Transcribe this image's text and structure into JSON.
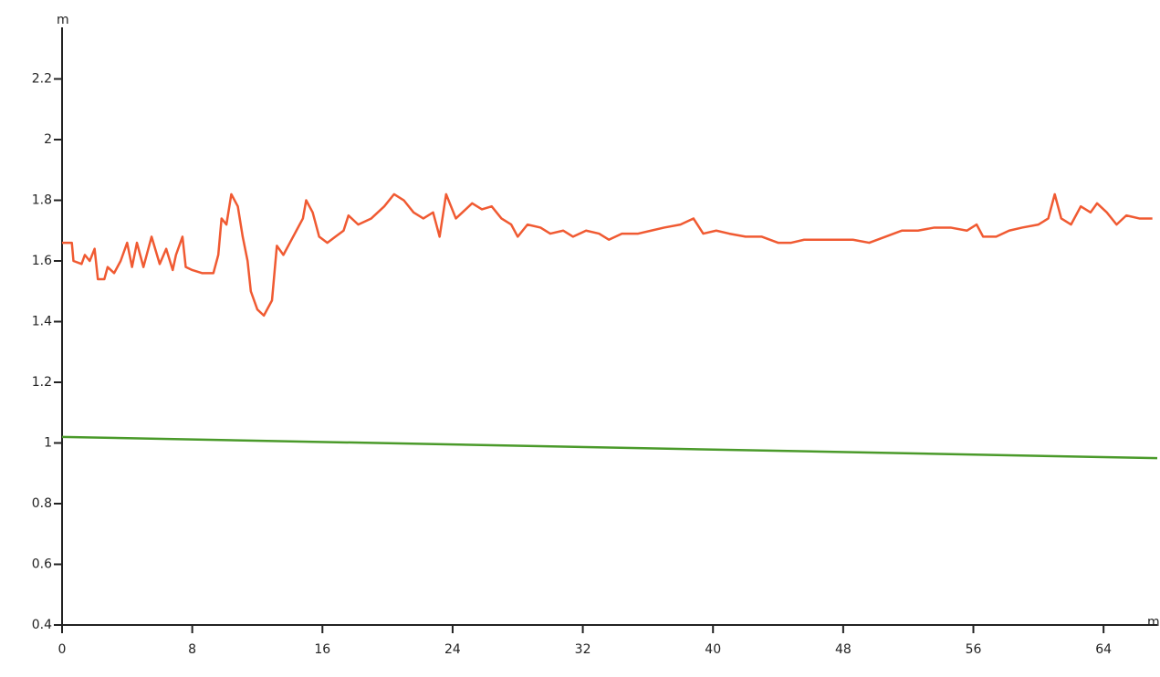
{
  "chart_data": {
    "type": "line",
    "x_label": "m",
    "y_label": "m",
    "xlim": [
      0,
      67.3
    ],
    "ylim": [
      0.4,
      2.37
    ],
    "xticks": [
      0,
      8,
      16,
      24,
      32,
      40,
      48,
      56,
      64
    ],
    "yticks": [
      0.4,
      0.6,
      0.8,
      1,
      1.2,
      1.4,
      1.6,
      1.8,
      2,
      2.2
    ],
    "series": [
      {
        "color": "#f05a32",
        "x": [
          0,
          0.6,
          0.7,
          1.2,
          1.4,
          1.7,
          2.0,
          2.2,
          2.6,
          2.8,
          3.2,
          3.6,
          4.0,
          4.3,
          4.6,
          5.0,
          5.5,
          6.0,
          6.4,
          6.8,
          7.0,
          7.4,
          7.6,
          8.0,
          8.6,
          9.3,
          9.6,
          9.8,
          10.1,
          10.4,
          10.8,
          11.1,
          11.4,
          11.6,
          12.0,
          12.4,
          12.9,
          13.2,
          13.6,
          14.0,
          14.4,
          14.8,
          15.0,
          15.4,
          15.8,
          16.3,
          16.8,
          17.3,
          17.6,
          18.2,
          19.0,
          19.8,
          20.4,
          21.0,
          21.6,
          22.2,
          22.8,
          23.2,
          23.6,
          24.2,
          24.6,
          25.2,
          25.8,
          26.4,
          27.0,
          27.6,
          28.0,
          28.6,
          29.4,
          30.0,
          30.8,
          31.4,
          32.2,
          33.0,
          33.6,
          34.4,
          35.4,
          36.2,
          37.0,
          38.0,
          38.8,
          39.4,
          40.2,
          41.0,
          42.0,
          43.0,
          44.0,
          44.8,
          45.6,
          46.6,
          47.6,
          48.6,
          49.6,
          50.6,
          51.6,
          52.6,
          53.6,
          54.6,
          55.6,
          56.2,
          56.6,
          57.4,
          58.2,
          59.0,
          60.0,
          60.6,
          61.0,
          61.4,
          62.0,
          62.6,
          63.2,
          63.6,
          64.2,
          64.8,
          65.4,
          66.2,
          67.0
        ],
        "values": [
          1.66,
          1.66,
          1.6,
          1.59,
          1.62,
          1.6,
          1.64,
          1.54,
          1.54,
          1.58,
          1.56,
          1.6,
          1.66,
          1.58,
          1.66,
          1.58,
          1.68,
          1.59,
          1.64,
          1.57,
          1.62,
          1.68,
          1.58,
          1.57,
          1.56,
          1.56,
          1.62,
          1.74,
          1.72,
          1.82,
          1.78,
          1.68,
          1.6,
          1.5,
          1.44,
          1.42,
          1.47,
          1.65,
          1.62,
          1.66,
          1.7,
          1.74,
          1.8,
          1.76,
          1.68,
          1.66,
          1.68,
          1.7,
          1.75,
          1.72,
          1.74,
          1.78,
          1.82,
          1.8,
          1.76,
          1.74,
          1.76,
          1.68,
          1.82,
          1.74,
          1.76,
          1.79,
          1.77,
          1.78,
          1.74,
          1.72,
          1.68,
          1.72,
          1.71,
          1.69,
          1.7,
          1.68,
          1.7,
          1.69,
          1.67,
          1.69,
          1.69,
          1.7,
          1.71,
          1.72,
          1.74,
          1.69,
          1.7,
          1.69,
          1.68,
          1.68,
          1.66,
          1.66,
          1.67,
          1.67,
          1.67,
          1.67,
          1.66,
          1.68,
          1.7,
          1.7,
          1.71,
          1.71,
          1.7,
          1.72,
          1.68,
          1.68,
          1.7,
          1.71,
          1.72,
          1.74,
          1.82,
          1.74,
          1.72,
          1.78,
          1.76,
          1.79,
          1.76,
          1.72,
          1.75,
          1.74,
          1.74
        ]
      },
      {
        "color": "#4a9a2a",
        "x": [
          0,
          67.3
        ],
        "values": [
          1.02,
          0.95
        ]
      }
    ]
  }
}
